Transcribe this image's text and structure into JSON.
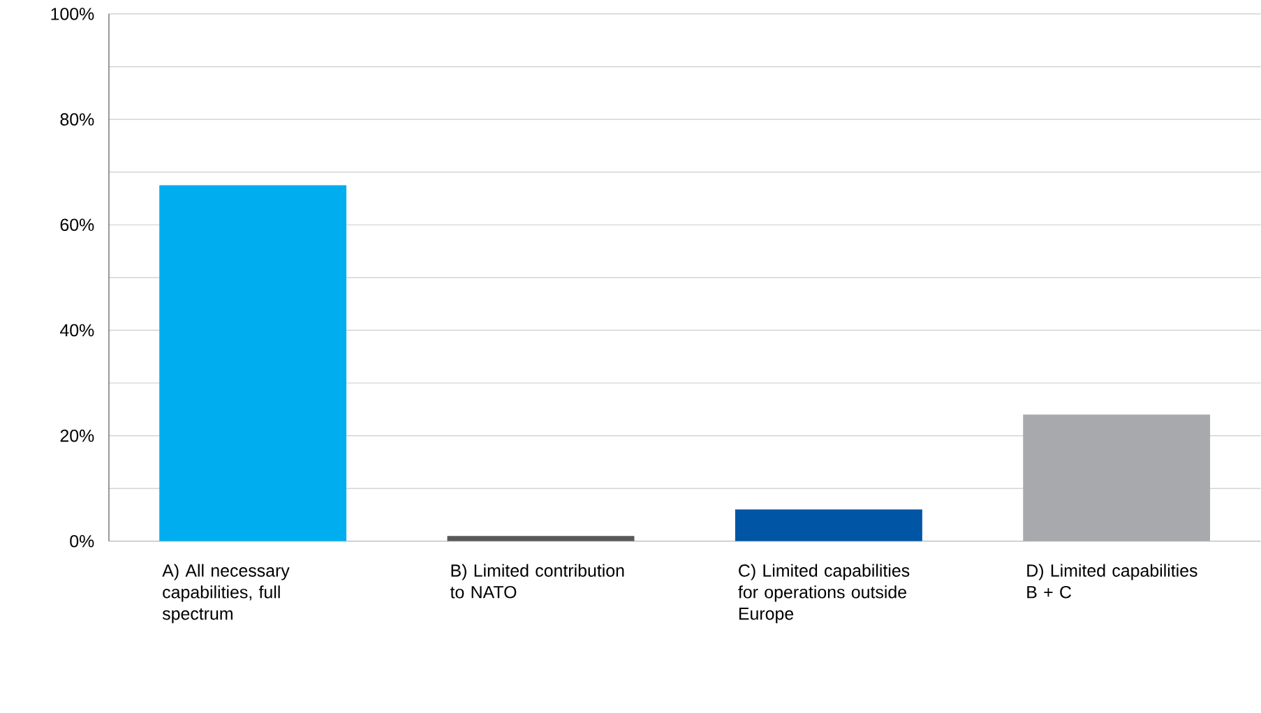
{
  "chart_data": {
    "type": "bar",
    "categories": [
      "A) All necessary capabilities, full spectrum",
      "B) Limited contribution to NATO",
      "C) Limited capabilities for operations outside Europe",
      "D) Limited capabilities B + C"
    ],
    "values": [
      67.5,
      1,
      6,
      24
    ],
    "colors": [
      "#00aeef",
      "#58595b",
      "#0055a4",
      "#a7a9ac"
    ],
    "ylim": [
      0,
      100
    ],
    "yticks": [
      {
        "value": 0,
        "label": "0%"
      },
      {
        "value": 10,
        "label": null
      },
      {
        "value": 20,
        "label": "20%"
      },
      {
        "value": 30,
        "label": null
      },
      {
        "value": 40,
        "label": "40%"
      },
      {
        "value": 50,
        "label": null
      },
      {
        "value": 60,
        "label": "60%"
      },
      {
        "value": 70,
        "label": null
      },
      {
        "value": 80,
        "label": "80%"
      },
      {
        "value": 90,
        "label": null
      },
      {
        "value": 100,
        "label": "100%"
      }
    ],
    "grid": "y"
  }
}
